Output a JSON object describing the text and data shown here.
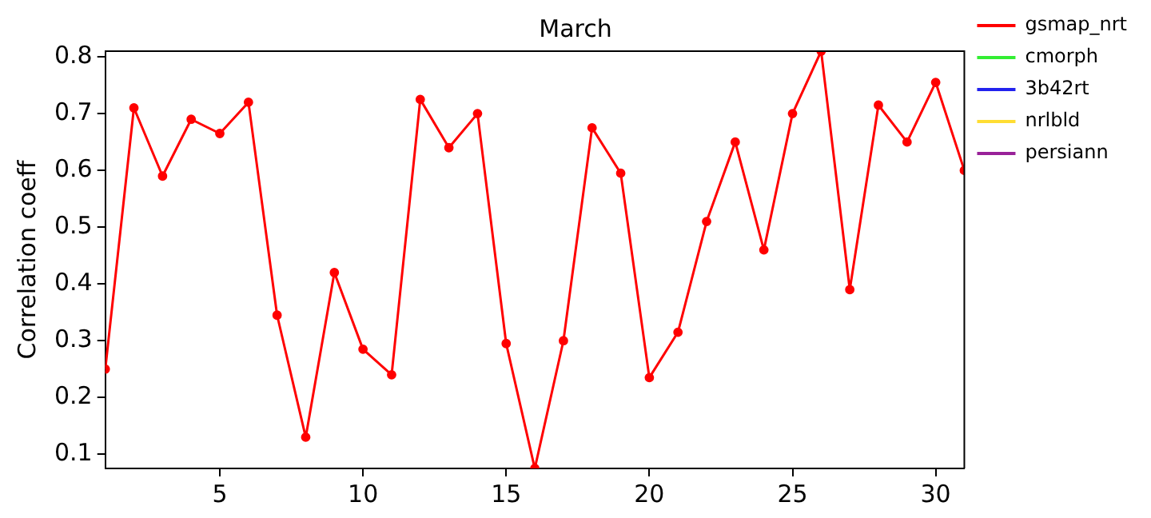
{
  "chart_data": {
    "type": "line",
    "title": "March",
    "ylabel": "Correlation coeff",
    "x": [
      1,
      2,
      3,
      4,
      5,
      6,
      7,
      8,
      9,
      10,
      11,
      12,
      13,
      14,
      15,
      16,
      17,
      18,
      19,
      20,
      21,
      22,
      23,
      24,
      25,
      26,
      27,
      28,
      29,
      30,
      31
    ],
    "series": [
      {
        "name": "gsmap_nrt",
        "color": "#ff0000",
        "values": [
          0.25,
          0.71,
          0.59,
          0.69,
          0.665,
          0.72,
          0.345,
          0.13,
          0.42,
          0.285,
          0.24,
          0.725,
          0.64,
          0.7,
          0.295,
          0.075,
          0.3,
          0.675,
          0.595,
          0.235,
          0.315,
          0.51,
          0.65,
          0.46,
          0.7,
          0.81,
          0.39,
          0.715,
          0.65,
          0.755,
          0.6
        ]
      },
      {
        "name": "cmorph",
        "color": "#33ee33",
        "values": [
          null,
          null,
          null,
          null,
          null,
          null,
          null,
          null,
          null,
          null,
          null,
          null,
          null,
          null,
          null,
          null,
          null,
          null,
          null,
          null,
          null,
          null,
          null,
          null,
          null,
          null,
          null,
          null,
          null,
          null,
          null
        ]
      },
      {
        "name": "3b42rt",
        "color": "#2222ee",
        "values": [
          null,
          null,
          null,
          null,
          null,
          null,
          null,
          null,
          null,
          null,
          null,
          null,
          null,
          null,
          null,
          null,
          null,
          null,
          null,
          null,
          null,
          null,
          null,
          null,
          null,
          null,
          null,
          null,
          null,
          null,
          null
        ]
      },
      {
        "name": "nrlbld",
        "color": "#ffdd33",
        "values": [
          null,
          null,
          null,
          null,
          null,
          null,
          null,
          null,
          null,
          null,
          null,
          null,
          null,
          null,
          null,
          null,
          null,
          null,
          null,
          null,
          null,
          null,
          null,
          null,
          null,
          null,
          null,
          null,
          null,
          null,
          null
        ]
      },
      {
        "name": "persiann",
        "color": "#992299",
        "values": [
          null,
          null,
          null,
          null,
          null,
          null,
          null,
          null,
          null,
          null,
          null,
          null,
          null,
          null,
          null,
          null,
          null,
          null,
          null,
          null,
          null,
          null,
          null,
          null,
          null,
          null,
          null,
          null,
          null,
          null,
          null
        ]
      }
    ],
    "xlim": [
      1,
      31
    ],
    "xticks": [
      5,
      10,
      15,
      20,
      25,
      30
    ],
    "ylim": [
      0.075,
      0.81
    ],
    "yticks": [
      0.1,
      0.2,
      0.3,
      0.4,
      0.5,
      0.6,
      0.7,
      0.8
    ],
    "grid": false,
    "legend": "right",
    "marker": "circle",
    "line_style": "solid"
  }
}
